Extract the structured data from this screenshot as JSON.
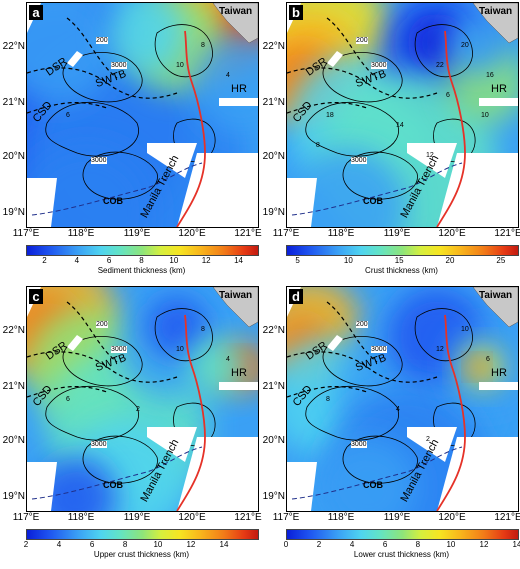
{
  "lat_labels": [
    "22°N",
    "21°N",
    "20°N",
    "19°N"
  ],
  "lon_labels": [
    "117°E",
    "118°E",
    "119°E",
    "120°E",
    "121°E"
  ],
  "regions": {
    "taiwan": "Taiwan",
    "dsr": "DSR",
    "swtb": "SWTB",
    "csd": "CSD",
    "hr": "HR",
    "cob": "COB",
    "trench": "Manila Trench"
  },
  "panels": [
    {
      "id": "a",
      "title": "Sediment thickness (km)",
      "ticks": [
        "2",
        "4",
        "6",
        "8",
        "10",
        "12",
        "14"
      ],
      "contours": [
        "200",
        "3000",
        "3000",
        "10",
        "8",
        "6",
        "4"
      ]
    },
    {
      "id": "b",
      "title": "Crust thickness (km)",
      "ticks": [
        "5",
        "10",
        "15",
        "20",
        "25"
      ],
      "contours": [
        "200",
        "3000",
        "3000",
        "22",
        "20",
        "18",
        "16",
        "14",
        "12",
        "10",
        "8",
        "6"
      ]
    },
    {
      "id": "c",
      "title": "Upper crust thickness (km)",
      "ticks": [
        "2",
        "4",
        "6",
        "8",
        "10",
        "12",
        "14"
      ],
      "contours": [
        "200",
        "3000",
        "3000",
        "10",
        "8",
        "6",
        "4",
        "2"
      ]
    },
    {
      "id": "d",
      "title": "Lower crust thickness (km)",
      "ticks": [
        "0",
        "2",
        "4",
        "6",
        "8",
        "10",
        "12",
        "14"
      ],
      "contours": [
        "200",
        "3000",
        "3000",
        "12",
        "10",
        "8",
        "6",
        "4",
        "2"
      ]
    }
  ],
  "colors": {
    "trench": "#e53228",
    "dashed": "#1f2f8a",
    "land": "#c8c8c8"
  }
}
